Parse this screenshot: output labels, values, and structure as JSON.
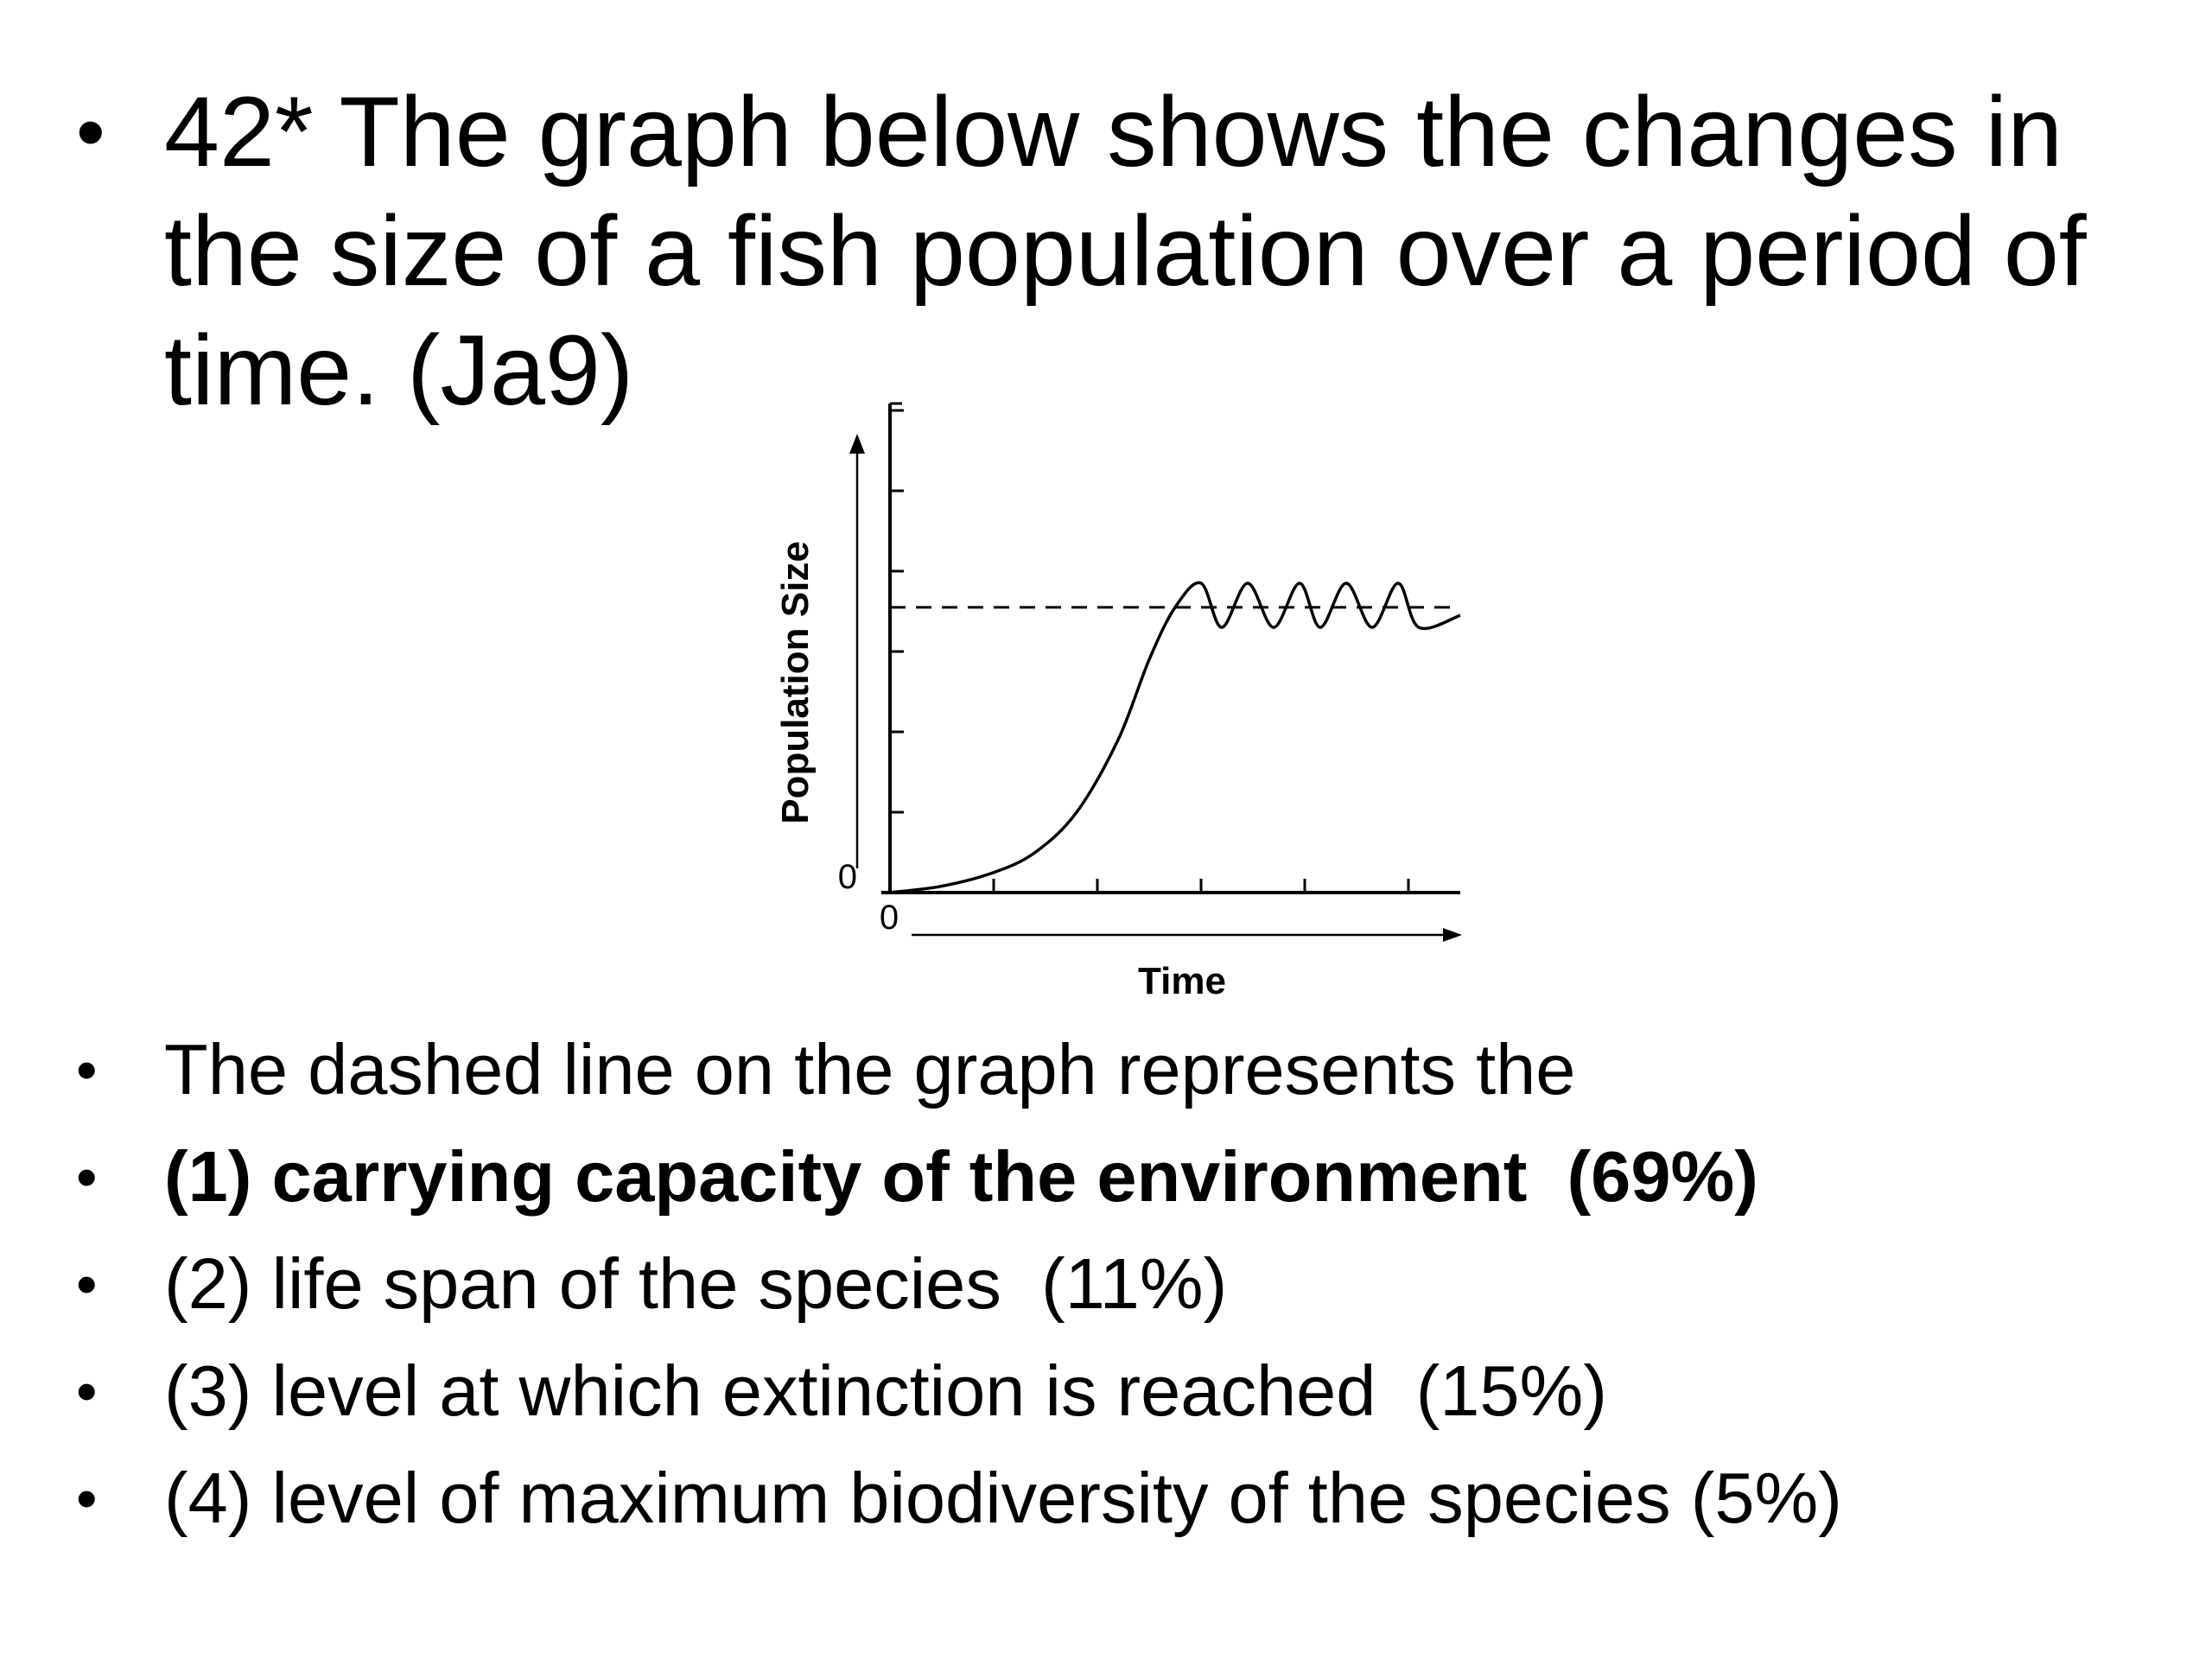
{
  "question": {
    "bullet": "•",
    "lines": [
      "42* The graph below shows the changes in",
      "the size of a fish population over a period of",
      "time. (Ja9)"
    ]
  },
  "chart_data": {
    "type": "line",
    "title": "",
    "xlabel": "Time",
    "ylabel": "Population Size",
    "x_origin_label": "0",
    "y_origin_label": "0",
    "xlim": [
      0,
      5.5
    ],
    "ylim": [
      0,
      6
    ],
    "x_ticks": [
      0,
      1,
      2,
      3,
      4,
      5
    ],
    "y_ticks": [
      0,
      1,
      2,
      3,
      4,
      5,
      6
    ],
    "series": [
      {
        "style": "solid",
        "x": [
          0,
          0.5,
          1.0,
          1.4,
          1.8,
          2.2,
          2.5,
          2.75,
          3.0,
          3.2,
          3.45,
          3.7,
          3.95,
          4.15,
          4.4,
          4.65,
          4.9,
          5.1,
          5.5
        ],
        "y": [
          0,
          0.08,
          0.25,
          0.5,
          1.0,
          1.9,
          2.9,
          3.55,
          3.85,
          3.3,
          3.85,
          3.3,
          3.85,
          3.3,
          3.85,
          3.3,
          3.85,
          3.3,
          3.45
        ]
      },
      {
        "style": "dashed",
        "x": [
          0,
          5.5
        ],
        "y": [
          3.55,
          3.55
        ]
      }
    ],
    "grid": false,
    "legend": "none",
    "colors": {
      "line": "#000000",
      "axis": "#000000"
    }
  },
  "answers": [
    {
      "bullet": "•",
      "text": "The dashed line on the graph represents the",
      "bold": false
    },
    {
      "bullet": "•",
      "text": "(1) carrying capacity of the environment  (69%)",
      "bold": true
    },
    {
      "bullet": "•",
      "text": "(2) life span of the species  (11%)",
      "bold": false
    },
    {
      "bullet": "•",
      "text": "(3) level at which extinction is reached  (15%)",
      "bold": false
    },
    {
      "bullet": "•",
      "text": "(4) level of maximum biodiversity of the species (5%)",
      "bold": false
    }
  ]
}
